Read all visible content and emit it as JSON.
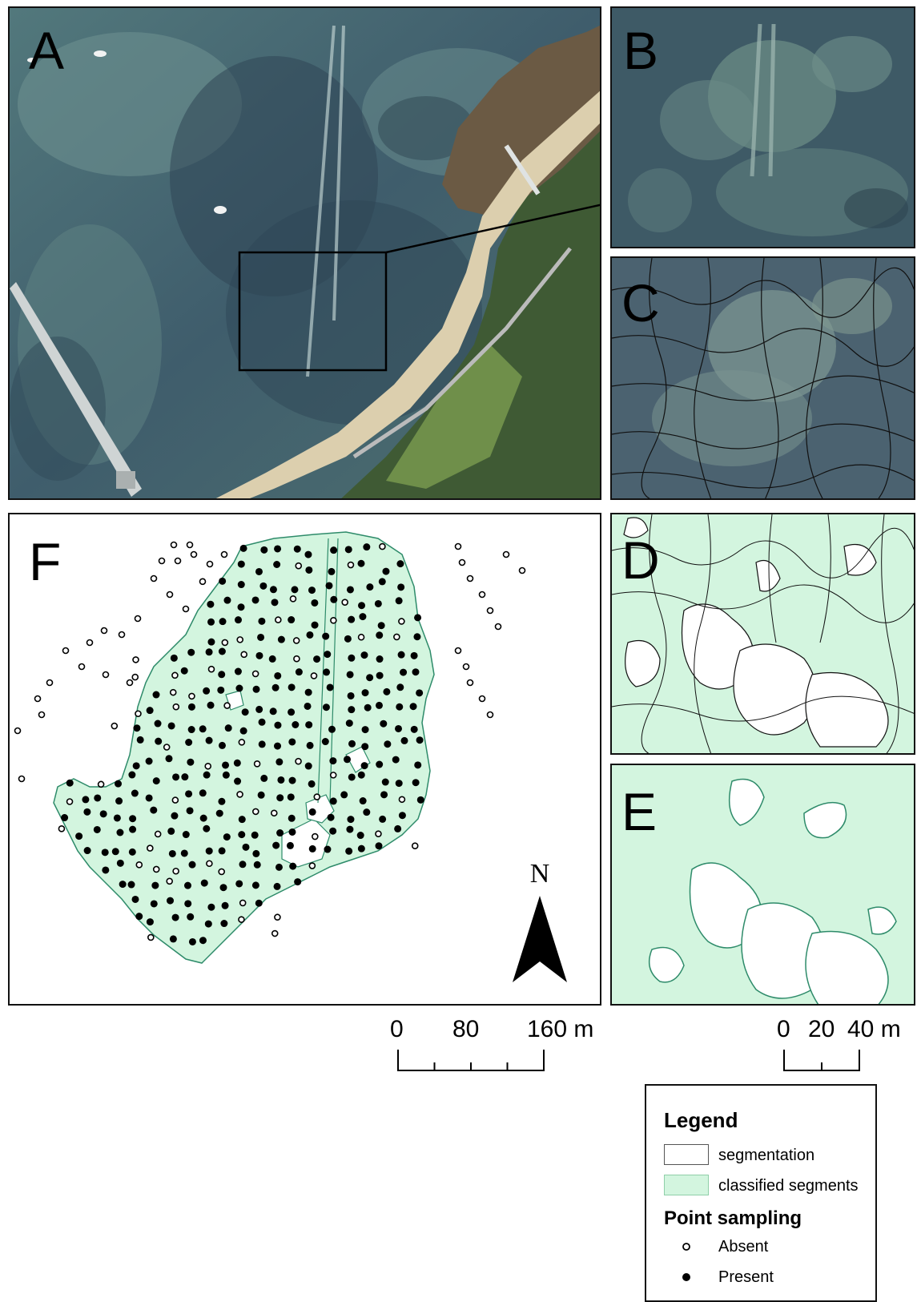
{
  "panels": {
    "a": {
      "label": "A"
    },
    "b": {
      "label": "B"
    },
    "c": {
      "label": "C"
    },
    "d": {
      "label": "D"
    },
    "e": {
      "label": "E"
    },
    "f": {
      "label": "F"
    }
  },
  "north_arrow": {
    "letter": "N"
  },
  "scale_main": {
    "ticks": [
      "0",
      "80",
      "160 m"
    ]
  },
  "scale_small": {
    "ticks": [
      "0",
      "20",
      "40 m"
    ]
  },
  "legend": {
    "title": "Legend",
    "segmentation_label": "segmentation",
    "classified_label": "classified segments",
    "point_title": "Point sampling",
    "absent_label": "Absent",
    "present_label": "Present"
  },
  "colors": {
    "classified_fill": "#d3f5df",
    "classified_edge": "#2e8b6a",
    "water_dark": "#3d5868",
    "water_light": "#7a9c9a",
    "sand": "#dccfae",
    "vegetation": "#3f5a34"
  }
}
